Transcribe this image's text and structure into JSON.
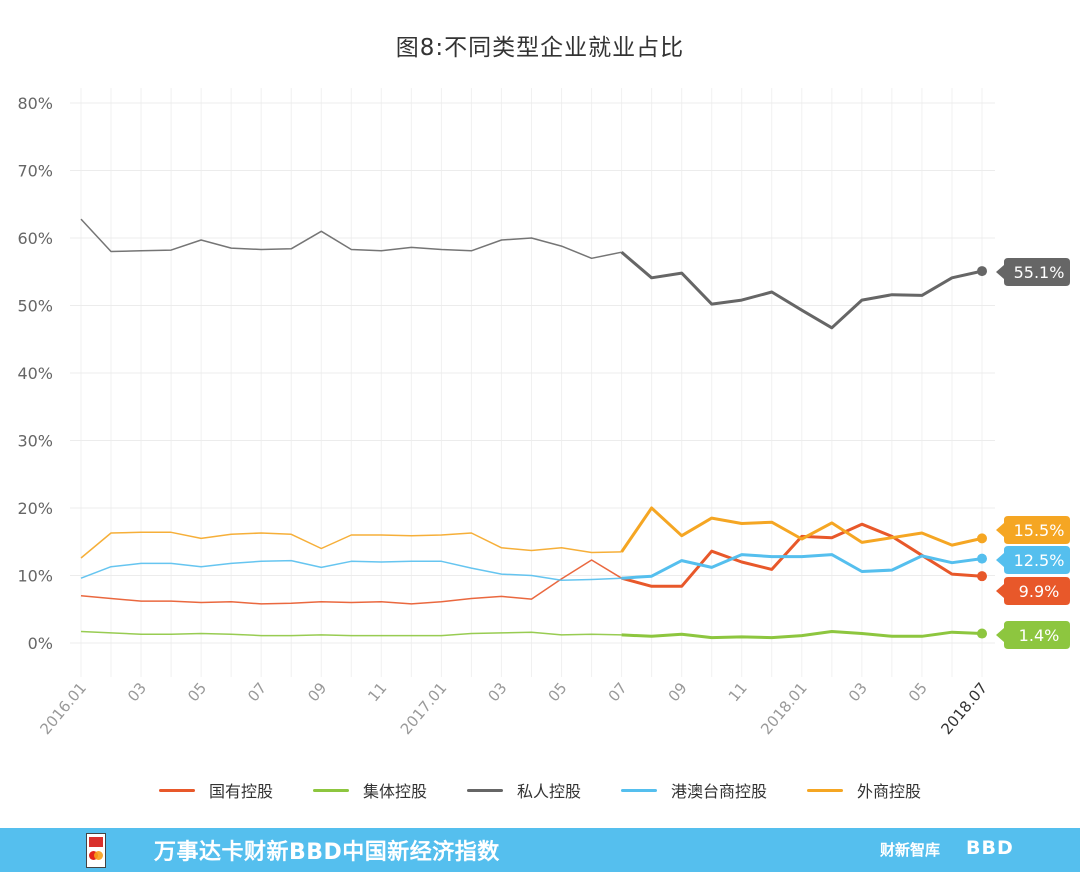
{
  "chart_data": {
    "type": "line",
    "title": "图8:不同类型企业就业占比",
    "y_ticks": [
      "0%",
      "10%",
      "20%",
      "30%",
      "40%",
      "50%",
      "60%",
      "70%",
      "80%"
    ],
    "ylim": [
      -5,
      82
    ],
    "grid": true,
    "legend_position": "bottom",
    "x_labels": [
      "2016.01",
      "03",
      "05",
      "07",
      "09",
      "11",
      "2017.01",
      "03",
      "05",
      "07",
      "09",
      "11",
      "2018.01",
      "03",
      "05",
      "2018.07"
    ],
    "x": [
      "2016.01",
      "2016.02",
      "2016.03",
      "2016.04",
      "2016.05",
      "2016.06",
      "2016.07",
      "2016.08",
      "2016.09",
      "2016.10",
      "2016.11",
      "2016.12",
      "2017.01",
      "2017.02",
      "2017.03",
      "2017.04",
      "2017.05",
      "2017.06",
      "2017.07",
      "2017.08",
      "2017.09",
      "2017.10",
      "2017.11",
      "2017.12",
      "2018.01",
      "2018.02",
      "2018.03",
      "2018.04",
      "2018.05",
      "2018.06",
      "2018.07"
    ],
    "series": [
      {
        "name": "国有控股",
        "color": "#e8582a",
        "end_label": "9.9%",
        "values": [
          7.0,
          6.6,
          6.2,
          6.2,
          6.0,
          6.1,
          5.8,
          5.9,
          6.1,
          6.0,
          6.1,
          5.8,
          6.1,
          6.6,
          6.9,
          6.5,
          9.5,
          12.3,
          9.6,
          8.4,
          8.4,
          13.6,
          12.0,
          10.9,
          15.8,
          15.6,
          17.6,
          15.8,
          13.0,
          10.2,
          9.9
        ]
      },
      {
        "name": "集体控股",
        "color": "#8dc63f",
        "end_label": "1.4%",
        "values": [
          1.7,
          1.5,
          1.3,
          1.3,
          1.4,
          1.3,
          1.1,
          1.1,
          1.2,
          1.1,
          1.1,
          1.1,
          1.1,
          1.4,
          1.5,
          1.6,
          1.2,
          1.3,
          1.2,
          1.0,
          1.3,
          0.8,
          0.9,
          0.8,
          1.1,
          1.7,
          1.4,
          1.0,
          1.0,
          1.6,
          1.4
        ]
      },
      {
        "name": "私人控股",
        "color": "#666666",
        "end_label": "55.1%",
        "values": [
          62.8,
          58.0,
          58.1,
          58.2,
          59.7,
          58.5,
          58.3,
          58.4,
          61.0,
          58.3,
          58.1,
          58.6,
          58.3,
          58.1,
          59.7,
          60.0,
          58.8,
          57.0,
          57.9,
          54.1,
          54.8,
          50.2,
          50.8,
          52.0,
          49.3,
          46.7,
          50.8,
          51.6,
          51.5,
          54.1,
          55.1
        ]
      },
      {
        "name": "港澳台商控股",
        "color": "#55bfee",
        "end_label": "12.5%",
        "values": [
          9.6,
          11.3,
          11.8,
          11.8,
          11.3,
          11.8,
          12.1,
          12.2,
          11.2,
          12.1,
          12.0,
          12.1,
          12.1,
          11.1,
          10.2,
          10.0,
          9.3,
          9.4,
          9.6,
          9.9,
          12.2,
          11.2,
          13.1,
          12.8,
          12.8,
          13.1,
          10.6,
          10.8,
          12.9,
          11.9,
          12.5
        ]
      },
      {
        "name": "外商控股",
        "color": "#f5a623",
        "end_label": "15.5%",
        "values": [
          12.6,
          16.3,
          16.4,
          16.4,
          15.5,
          16.1,
          16.3,
          16.1,
          14.0,
          16.0,
          16.0,
          15.9,
          16.0,
          16.3,
          14.1,
          13.7,
          14.1,
          13.4,
          13.5,
          20.0,
          15.9,
          18.5,
          17.7,
          17.9,
          15.4,
          17.8,
          14.9,
          15.6,
          16.3,
          14.5,
          15.5
        ]
      }
    ]
  },
  "footer": {
    "text": "万事达卡财新BBD中国新经济指数",
    "brand1": "财新智库",
    "brand2": "BBD"
  }
}
